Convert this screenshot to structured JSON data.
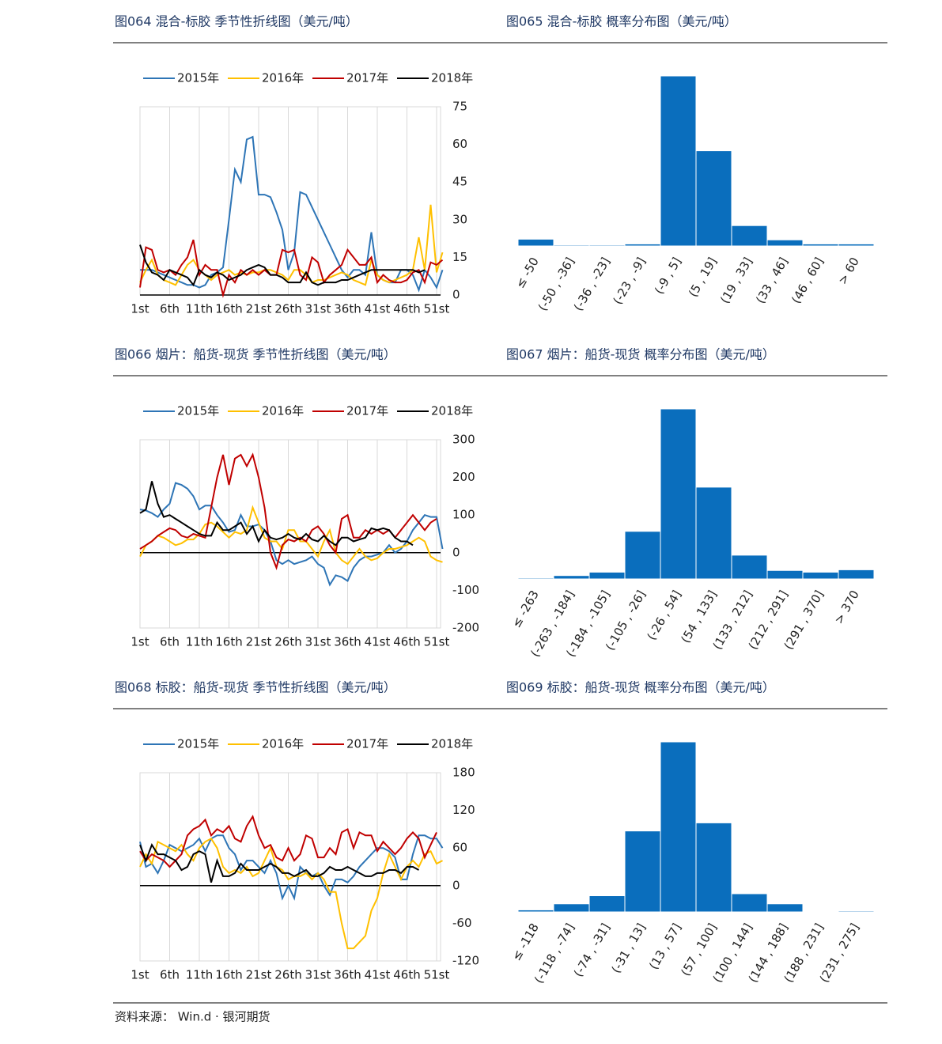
{
  "chart_data": [
    {
      "type": "line",
      "title": "图064 混合-标胶 季节性折线图（美元/吨）",
      "categories": [
        "1st",
        null,
        null,
        null,
        null,
        "6th",
        null,
        null,
        null,
        null,
        "11th",
        null,
        null,
        null,
        null,
        "16th",
        null,
        null,
        null,
        null,
        "21st",
        null,
        null,
        null,
        null,
        "26th",
        null,
        null,
        null,
        null,
        "31st",
        null,
        null,
        null,
        null,
        "36th",
        null,
        null,
        null,
        null,
        "41st",
        null,
        null,
        null,
        null,
        "46th",
        null,
        null,
        null,
        null,
        "51st",
        null
      ],
      "series": [
        {
          "name": "2015年",
          "color": "#2e75b6",
          "values": [
            10,
            10,
            10,
            9,
            8,
            7,
            6,
            5,
            4,
            4,
            3,
            4,
            8,
            9,
            11,
            30,
            50,
            45,
            62,
            63,
            40,
            40,
            39,
            33,
            26,
            10,
            17,
            41,
            40,
            35,
            30,
            25,
            20,
            15,
            10,
            7,
            10,
            10,
            8,
            25,
            8,
            6,
            5,
            5,
            10,
            10,
            8,
            2,
            10,
            7,
            3,
            10
          ]
        },
        {
          "name": "2016年",
          "color": "#ffc000",
          "values": [
            5,
            10,
            14,
            8,
            6,
            5,
            4,
            8,
            12,
            14,
            10,
            8,
            6,
            8,
            9,
            10,
            8,
            9,
            8,
            9,
            9,
            10,
            10,
            9,
            8,
            6,
            10,
            10,
            8,
            5,
            6,
            6,
            7,
            8,
            9,
            8,
            6,
            5,
            4,
            14,
            8,
            6,
            5,
            6,
            7,
            8,
            10,
            23,
            10,
            36,
            9,
            17
          ]
        },
        {
          "name": "2017年",
          "color": "#c00000",
          "values": [
            3,
            19,
            18,
            10,
            9,
            10,
            8,
            12,
            15,
            22,
            8,
            12,
            10,
            10,
            0,
            8,
            5,
            10,
            8,
            10,
            8,
            10,
            8,
            8,
            18,
            17,
            18,
            8,
            6,
            15,
            13,
            5,
            8,
            10,
            12,
            18,
            15,
            12,
            12,
            15,
            5,
            8,
            6,
            5,
            5,
            6,
            9,
            10,
            5,
            13,
            12,
            14
          ]
        },
        {
          "name": "2018年",
          "color": "#000000",
          "values": [
            20,
            13,
            9,
            8,
            6,
            10,
            9,
            8,
            7,
            4,
            10,
            8,
            7,
            9,
            8,
            6,
            7,
            8,
            10,
            11,
            12,
            11,
            8,
            8,
            7,
            5,
            5,
            5,
            9,
            5,
            4,
            5,
            5,
            5,
            6,
            6,
            7,
            8,
            9,
            10,
            10,
            10,
            10,
            10,
            10,
            10,
            10,
            9,
            10,
            null,
            null,
            null
          ]
        }
      ],
      "ylim": [
        0,
        75
      ],
      "yticks": [
        0,
        15,
        30,
        45,
        60,
        75
      ],
      "grid": true,
      "legend": "top"
    },
    {
      "type": "bar",
      "title": "图065 混合-标胶 概率分布图（美元/吨）",
      "categories": [
        "≤ -50",
        "(-50 , -36]",
        "(-36 , -23]",
        "(-23 , -9]",
        "(-9 , 5]",
        "(5 , 19]",
        "(19 , 33]",
        "(33 , 46]",
        "(46 , 60]",
        "> 60"
      ],
      "values": [
        2,
        0.3,
        0.3,
        0.6,
        50,
        28,
        6,
        1.8,
        0.6,
        0.6
      ],
      "color": "#0a6ebd"
    },
    {
      "type": "line",
      "title": "图066 烟片：船货-现货 季节性折线图（美元/吨）",
      "categories": [
        "1st",
        null,
        null,
        null,
        null,
        "6th",
        null,
        null,
        null,
        null,
        "11th",
        null,
        null,
        null,
        null,
        "16th",
        null,
        null,
        null,
        null,
        "21st",
        null,
        null,
        null,
        null,
        "26th",
        null,
        null,
        null,
        null,
        "31st",
        null,
        null,
        null,
        null,
        "36th",
        null,
        null,
        null,
        null,
        "41st",
        null,
        null,
        null,
        null,
        "46th",
        null,
        null,
        null,
        null,
        "51st",
        null
      ],
      "series": [
        {
          "name": "2015年",
          "color": "#2e75b6",
          "values": [
            115,
            112,
            105,
            95,
            115,
            130,
            185,
            180,
            170,
            150,
            115,
            125,
            125,
            100,
            80,
            55,
            60,
            100,
            70,
            70,
            75,
            60,
            30,
            -20,
            -30,
            -20,
            -30,
            -25,
            -20,
            -10,
            -30,
            -40,
            -85,
            -60,
            -65,
            -75,
            -40,
            -20,
            -10,
            -10,
            -5,
            0,
            20,
            0,
            10,
            30,
            60,
            80,
            100,
            95,
            95,
            10
          ]
        },
        {
          "name": "2016年",
          "color": "#ffc000",
          "values": [
            -10,
            20,
            30,
            45,
            40,
            30,
            20,
            25,
            35,
            35,
            50,
            75,
            80,
            70,
            55,
            40,
            55,
            50,
            60,
            120,
            80,
            40,
            30,
            30,
            10,
            60,
            60,
            30,
            30,
            10,
            -10,
            30,
            60,
            0,
            -20,
            -30,
            -10,
            10,
            -10,
            -20,
            -15,
            0,
            10,
            10,
            15,
            20,
            30,
            40,
            30,
            -10,
            -20,
            -25
          ]
        },
        {
          "name": "2017年",
          "color": "#c00000",
          "values": [
            10,
            20,
            30,
            45,
            55,
            65,
            60,
            45,
            40,
            50,
            45,
            40,
            120,
            200,
            260,
            180,
            250,
            260,
            230,
            260,
            200,
            120,
            0,
            -40,
            20,
            35,
            30,
            40,
            30,
            60,
            70,
            50,
            20,
            0,
            90,
            100,
            40,
            40,
            60,
            50,
            60,
            50,
            60,
            40,
            60,
            80,
            100,
            80,
            60,
            80,
            90,
            null
          ]
        },
        {
          "name": "2018年",
          "color": "#000000",
          "values": [
            105,
            115,
            190,
            130,
            95,
            100,
            90,
            80,
            70,
            60,
            50,
            45,
            45,
            80,
            60,
            60,
            70,
            80,
            50,
            70,
            30,
            60,
            40,
            35,
            40,
            50,
            40,
            35,
            50,
            35,
            30,
            45,
            30,
            20,
            40,
            40,
            30,
            35,
            40,
            65,
            60,
            65,
            60,
            40,
            30,
            30,
            20,
            null,
            null,
            null,
            null,
            null
          ]
        }
      ],
      "ylim": [
        -200,
        300
      ],
      "yticks": [
        -200,
        -100,
        0,
        100,
        200,
        300
      ],
      "grid": true,
      "legend": "top"
    },
    {
      "type": "bar",
      "title": "图067 烟片：船货-现货 概率分布图（美元/吨）",
      "categories": [
        "≤ -263",
        "(-263 , -184]",
        "(-184 , -105]",
        "(-105 , -26]",
        "(-26 , 54]",
        "(54 , 133]",
        "(133 , 212]",
        "(212 , 291]",
        "(291 , 370]",
        "> 370"
      ],
      "values": [
        0.3,
        1,
        2,
        14,
        50,
        27,
        7,
        2.5,
        2,
        2.7
      ],
      "color": "#0a6ebd"
    },
    {
      "type": "line",
      "title": "图068 标胶：船货-现货 季节性折线图（美元/吨）",
      "categories": [
        "1st",
        null,
        null,
        null,
        null,
        "6th",
        null,
        null,
        null,
        null,
        "11th",
        null,
        null,
        null,
        null,
        "16th",
        null,
        null,
        null,
        null,
        "21st",
        null,
        null,
        null,
        null,
        "26th",
        null,
        null,
        null,
        null,
        "31st",
        null,
        null,
        null,
        null,
        "36th",
        null,
        null,
        null,
        null,
        "41st",
        null,
        null,
        null,
        null,
        "46th",
        null,
        null,
        null,
        null,
        "51st",
        null
      ],
      "series": [
        {
          "name": "2015年",
          "color": "#2e75b6",
          "values": [
            70,
            30,
            35,
            20,
            40,
            65,
            60,
            55,
            60,
            65,
            75,
            55,
            75,
            80,
            80,
            60,
            50,
            25,
            40,
            40,
            30,
            20,
            40,
            20,
            -20,
            0,
            -20,
            30,
            20,
            15,
            20,
            0,
            -15,
            10,
            10,
            5,
            15,
            30,
            40,
            50,
            60,
            60,
            55,
            45,
            10,
            10,
            50,
            80,
            80,
            75,
            75,
            60
          ]
        },
        {
          "name": "2016年",
          "color": "#ffc000",
          "values": [
            30,
            50,
            35,
            70,
            65,
            60,
            55,
            65,
            50,
            40,
            60,
            70,
            75,
            60,
            30,
            20,
            25,
            20,
            30,
            15,
            20,
            40,
            60,
            30,
            25,
            10,
            15,
            15,
            20,
            10,
            20,
            10,
            -10,
            -10,
            -60,
            -100,
            -100,
            -90,
            -80,
            -40,
            -20,
            20,
            50,
            30,
            10,
            30,
            40,
            30,
            50,
            55,
            35,
            40
          ]
        },
        {
          "name": "2017年",
          "color": "#c00000",
          "values": [
            55,
            40,
            50,
            45,
            40,
            30,
            40,
            50,
            80,
            90,
            95,
            105,
            80,
            90,
            85,
            95,
            75,
            70,
            95,
            110,
            80,
            60,
            65,
            45,
            40,
            60,
            40,
            50,
            80,
            75,
            45,
            45,
            60,
            50,
            85,
            90,
            60,
            85,
            80,
            80,
            55,
            70,
            60,
            50,
            60,
            75,
            85,
            75,
            45,
            65,
            85,
            null
          ]
        },
        {
          "name": "2018年",
          "color": "#000000",
          "values": [
            65,
            40,
            65,
            50,
            50,
            45,
            40,
            25,
            30,
            50,
            55,
            50,
            5,
            40,
            15,
            15,
            20,
            35,
            25,
            25,
            25,
            30,
            35,
            30,
            20,
            20,
            15,
            20,
            25,
            15,
            15,
            20,
            30,
            25,
            25,
            30,
            25,
            20,
            15,
            15,
            20,
            20,
            25,
            25,
            20,
            30,
            30,
            25,
            null,
            null,
            null,
            null
          ]
        }
      ],
      "ylim": [
        -120,
        180
      ],
      "yticks": [
        -120,
        -60,
        0,
        60,
        120,
        180
      ],
      "grid": true,
      "legend": "top"
    },
    {
      "type": "bar",
      "title": "图069 标胶：船货-现货 概率分布图（美元/吨）",
      "categories": [
        "≤ -118",
        "(-118 , -74]",
        "(-74 , -31]",
        "(-31 , 13]",
        "(13 , 57]",
        "(57 , 100]",
        "(100 , 144]",
        "(144 , 188]",
        "(188 , 231]",
        "(231 , 275]"
      ],
      "values": [
        1,
        4,
        8,
        40,
        84,
        44,
        9,
        4,
        0.2,
        0.5
      ],
      "color": "#0a6ebd"
    }
  ],
  "source": "资料来源： Win.d · 银河期货"
}
